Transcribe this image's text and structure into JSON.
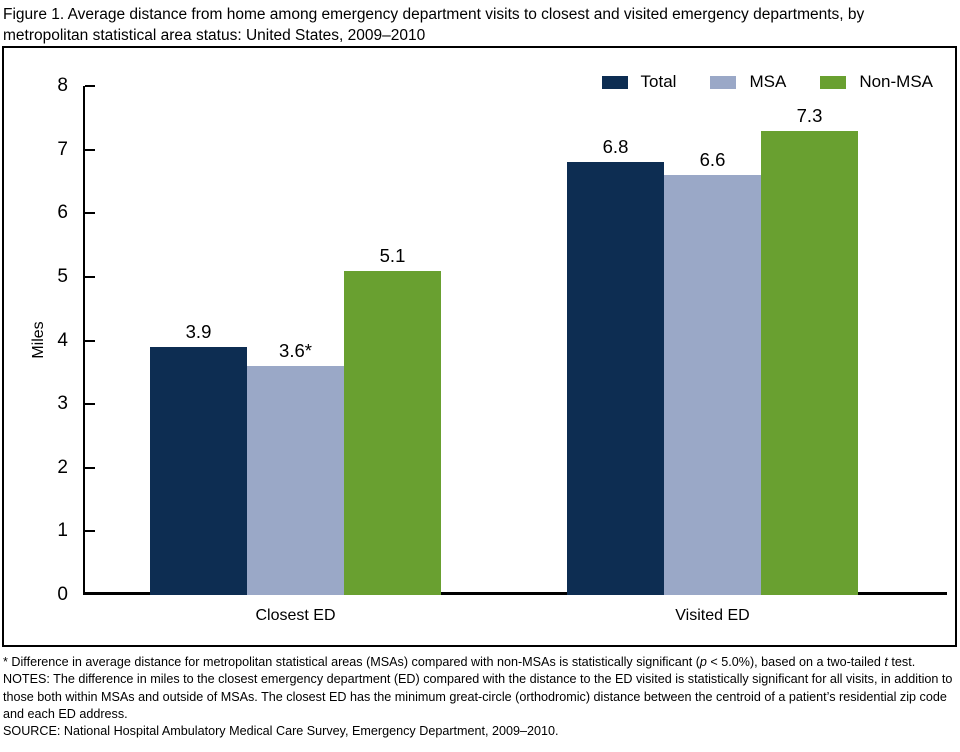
{
  "title": "Figure 1. Average distance from home among emergency department visits to closest and visited emergency departments, by metropolitan statistical area status: United States, 2009–2010",
  "chart_data": {
    "type": "bar",
    "title": "Figure 1. Average distance from home among emergency department visits to closest and visited emergency departments, by metropolitan statistical area status: United States, 2009–2010",
    "categories": [
      "Closest ED",
      "Visited ED"
    ],
    "series": [
      {
        "name": "Total",
        "color": "#0d2d52",
        "values": [
          3.9,
          6.8
        ],
        "labels": [
          "3.9",
          "6.8"
        ]
      },
      {
        "name": "MSA",
        "color": "#9aa8c7",
        "values": [
          3.6,
          6.6
        ],
        "labels": [
          "3.6*",
          "6.6"
        ]
      },
      {
        "name": "Non-MSA",
        "color": "#69a030",
        "values": [
          5.1,
          7.3
        ],
        "labels": [
          "5.1",
          "7.3"
        ]
      }
    ],
    "xlabel": "",
    "ylabel": "Miles",
    "ylim": [
      0,
      8
    ],
    "yticks": [
      0,
      1,
      2,
      3,
      4,
      5,
      6,
      7,
      8
    ],
    "ytick_step": 1,
    "legend_position": "top-right",
    "grid": false,
    "axis_color": "#000000",
    "background_color": "#ffffff"
  },
  "footnotes": {
    "star": {
      "part1": "* Difference in average distance for metropolitan statistical areas (MSAs) compared with non-MSAs is statistically significant (",
      "p_italic": "p",
      "part2": " < 5.0%), based on a two-tailed ",
      "t_italic": "t",
      "part3": " test."
    },
    "notes": "NOTES: The difference in miles to the closest emergency department (ED) compared with the distance to the ED visited is statistically significant for all visits, in addition to those both within MSAs and outside of MSAs. The closest ED has the minimum great-circle (orthodromic) distance between the centroid of a patient’s residential zip code and each ED address.",
    "source": "SOURCE: National Hospital Ambulatory Medical Care Survey, Emergency Department, 2009–2010."
  }
}
